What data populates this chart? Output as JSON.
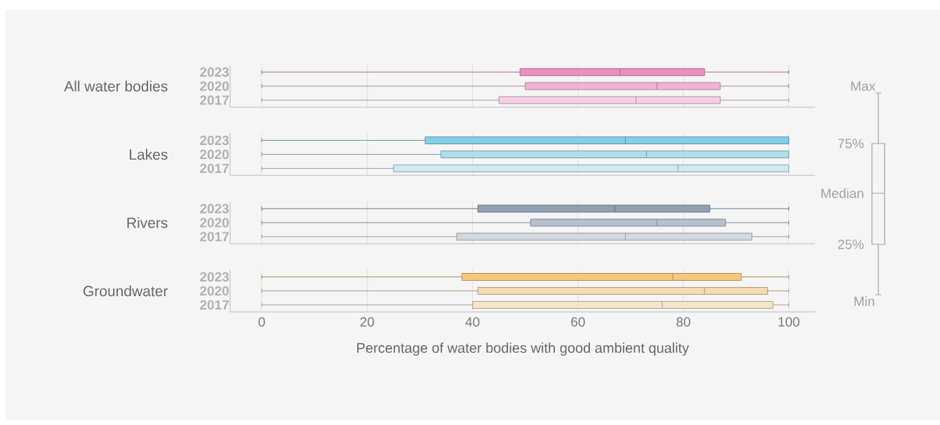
{
  "chart_data": [
    {
      "type": "box",
      "orientation": "horizontal",
      "ylabel": "All water bodies",
      "categories": [
        "2023",
        "2020",
        "2017"
      ],
      "xlim": [
        -6,
        105
      ],
      "xticks": [
        0,
        20,
        40,
        60,
        80,
        100
      ],
      "grid": "x",
      "tick_labels": "y",
      "colors": [
        "#ec8fc1",
        "#f2b3d5",
        "#f5cfe2"
      ],
      "boxes": [
        {
          "low": 0,
          "q1": 49,
          "median": 68,
          "q3": 84,
          "high": 100
        },
        {
          "low": 0,
          "q1": 50,
          "median": 75,
          "q3": 87,
          "high": 100
        },
        {
          "low": 0,
          "q1": 45,
          "median": 71,
          "q3": 87,
          "high": 100
        }
      ]
    },
    {
      "type": "box",
      "orientation": "horizontal",
      "ylabel": "Lakes",
      "categories": [
        "2023",
        "2020",
        "2017"
      ],
      "xlim": [
        -6,
        105
      ],
      "xticks": [
        0,
        20,
        40,
        60,
        80,
        100
      ],
      "grid": "x",
      "tick_labels": "y",
      "colors": [
        "#84d0e6",
        "#afdeeb",
        "#d0e9f0"
      ],
      "boxes": [
        {
          "low": 0,
          "q1": 31,
          "median": 69,
          "q3": 100,
          "high": 100
        },
        {
          "low": 0,
          "q1": 34,
          "median": 73,
          "q3": 100,
          "high": 100
        },
        {
          "low": 0,
          "q1": 25,
          "median": 79,
          "q3": 100,
          "high": 100
        }
      ]
    },
    {
      "type": "box",
      "orientation": "horizontal",
      "ylabel": "Rivers",
      "categories": [
        "2023",
        "2020",
        "2017"
      ],
      "xlim": [
        -6,
        105
      ],
      "xticks": [
        0,
        20,
        40,
        60,
        80,
        100
      ],
      "grid": "x",
      "tick_labels": "y",
      "colors": [
        "#8fa1b3",
        "#b5c1cc",
        "#d2d8df"
      ],
      "boxes": [
        {
          "low": 0,
          "q1": 41,
          "median": 67,
          "q3": 85,
          "high": 100
        },
        {
          "low": 0,
          "q1": 51,
          "median": 75,
          "q3": 88,
          "high": 100
        },
        {
          "low": 0,
          "q1": 37,
          "median": 69,
          "q3": 93,
          "high": 100
        }
      ]
    },
    {
      "type": "box",
      "orientation": "horizontal",
      "ylabel": "Groundwater",
      "xlabel": "Percentage of water bodies with good ambient quality",
      "categories": [
        "2023",
        "2020",
        "2017"
      ],
      "xlim": [
        -6,
        105
      ],
      "xticks": [
        0,
        20,
        40,
        60,
        80,
        100
      ],
      "grid": "x",
      "colors": [
        "#f7c87b",
        "#f4dbb0",
        "#f4e5cb"
      ],
      "boxes": [
        {
          "low": 0,
          "q1": 38,
          "median": 78,
          "q3": 91,
          "high": 100
        },
        {
          "low": 0,
          "q1": 41,
          "median": 84,
          "q3": 96,
          "high": 100
        },
        {
          "low": 0,
          "q1": 40,
          "median": 76,
          "q3": 97,
          "high": 100
        }
      ]
    },
    {
      "type": "other",
      "annotations": [
        "Max",
        "75%",
        "Median",
        "25%",
        "Min"
      ]
    }
  ]
}
